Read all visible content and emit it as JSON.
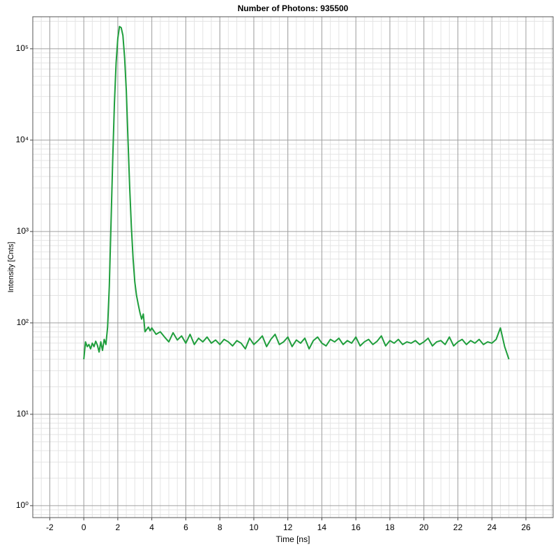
{
  "chart_data": {
    "type": "line",
    "title": "Number of Photons: 935500",
    "x_label": "Time [ns]",
    "y_label": "Intensity [Cnts]",
    "log_y": true,
    "grid": true,
    "minor_grid": true,
    "color": "#1f9e3c",
    "xlim": [
      -3,
      27.6
    ],
    "ylim": [
      0.74,
      224000
    ],
    "xticks": [
      -2,
      0,
      2,
      4,
      6,
      8,
      10,
      12,
      14,
      16,
      18,
      20,
      22,
      24,
      26
    ],
    "yticks": [
      {
        "value": 1,
        "label": "10⁰"
      },
      {
        "value": 10,
        "label": "10¹"
      },
      {
        "value": 100,
        "label": "10²"
      },
      {
        "value": 1000,
        "label": "10³"
      },
      {
        "value": 10000,
        "label": "10⁴"
      },
      {
        "value": 100000,
        "label": "10⁵"
      }
    ],
    "x": [
      0,
      0.1,
      0.2,
      0.3,
      0.4,
      0.5,
      0.6,
      0.7,
      0.8,
      0.9,
      1.0,
      1.1,
      1.2,
      1.3,
      1.4,
      1.5,
      1.6,
      1.7,
      1.8,
      1.9,
      2.0,
      2.1,
      2.2,
      2.3,
      2.4,
      2.5,
      2.6,
      2.7,
      2.8,
      2.9,
      3.0,
      3.1,
      3.2,
      3.3,
      3.4,
      3.5,
      3.6,
      3.7,
      3.8,
      3.9,
      4.0,
      4.25,
      4.5,
      4.75,
      5.0,
      5.25,
      5.5,
      5.75,
      6.0,
      6.25,
      6.5,
      6.75,
      7.0,
      7.25,
      7.5,
      7.75,
      8.0,
      8.25,
      8.5,
      8.75,
      9.0,
      9.25,
      9.5,
      9.75,
      10.0,
      10.25,
      10.5,
      10.75,
      11.0,
      11.25,
      11.5,
      11.75,
      12.0,
      12.25,
      12.5,
      12.75,
      13.0,
      13.25,
      13.5,
      13.75,
      14.0,
      14.25,
      14.5,
      14.75,
      15.0,
      15.25,
      15.5,
      15.75,
      16.0,
      16.25,
      16.5,
      16.75,
      17.0,
      17.25,
      17.5,
      17.75,
      18.0,
      18.25,
      18.5,
      18.75,
      19.0,
      19.25,
      19.5,
      19.75,
      20.0,
      20.25,
      20.5,
      20.75,
      21.0,
      21.25,
      21.5,
      21.75,
      22.0,
      22.25,
      22.5,
      22.75,
      23.0,
      23.25,
      23.5,
      23.75,
      24.0,
      24.25,
      24.5,
      24.75,
      25.0
    ],
    "values": [
      40,
      62,
      55,
      58,
      52,
      60,
      55,
      63,
      57,
      48,
      62,
      50,
      66,
      58,
      90,
      250,
      1200,
      6000,
      25000,
      70000,
      130000,
      175000,
      170000,
      140000,
      80000,
      35000,
      10000,
      3000,
      1100,
      500,
      280,
      200,
      160,
      130,
      110,
      125,
      80,
      85,
      90,
      82,
      88,
      75,
      80,
      70,
      62,
      78,
      65,
      72,
      60,
      75,
      58,
      68,
      62,
      70,
      60,
      65,
      58,
      66,
      62,
      56,
      64,
      60,
      52,
      68,
      58,
      64,
      72,
      55,
      66,
      75,
      58,
      62,
      70,
      55,
      65,
      60,
      68,
      52,
      64,
      70,
      60,
      56,
      66,
      62,
      68,
      58,
      64,
      60,
      70,
      56,
      62,
      66,
      58,
      63,
      72,
      56,
      64,
      60,
      66,
      58,
      62,
      60,
      64,
      58,
      62,
      68,
      56,
      62,
      64,
      58,
      70,
      56,
      62,
      66,
      58,
      64,
      60,
      66,
      58,
      62,
      60,
      66,
      88,
      55,
      40
    ]
  }
}
